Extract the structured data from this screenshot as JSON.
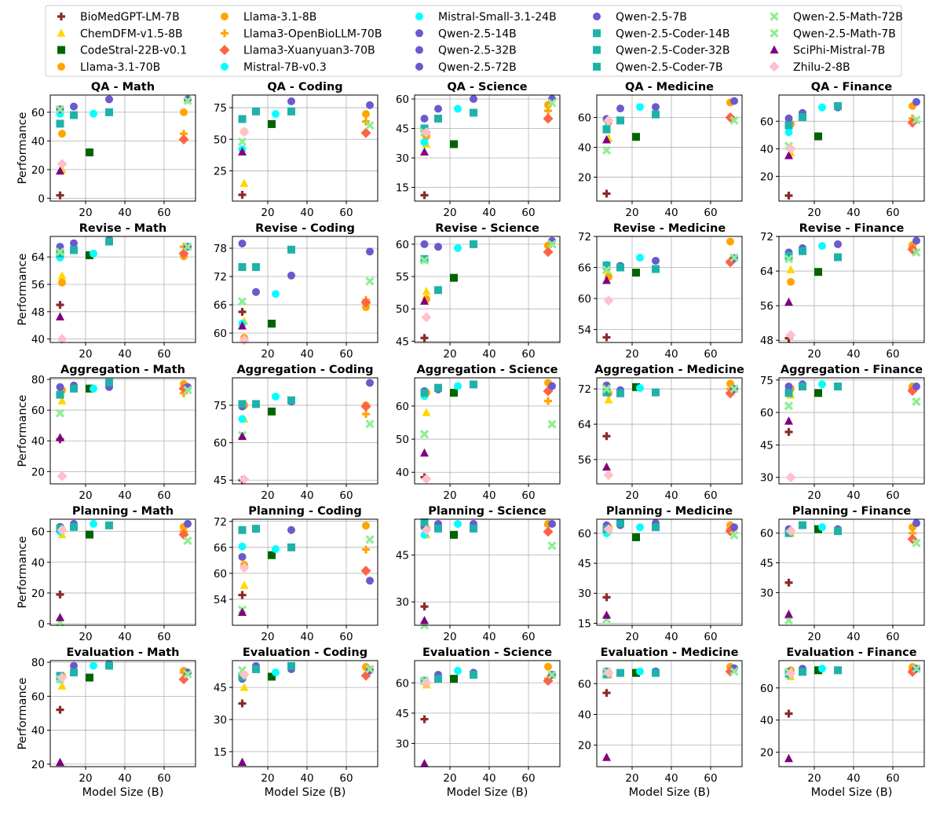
{
  "chart_data": {
    "type": "scatter",
    "xlabel": "Model Size (B)",
    "ylabel": "Performance",
    "x_ticks": [
      20,
      40,
      60
    ],
    "xlim": [
      2,
      76
    ],
    "legend": [
      {
        "name": "BioMedGPT-LM-7B",
        "marker": "plus",
        "color": "#8b2a2a"
      },
      {
        "name": "ChemDFM-v1.5-8B",
        "marker": "triangle",
        "color": "#ffd700"
      },
      {
        "name": "CodeStral-22B-v0.1",
        "marker": "square",
        "color": "#006400"
      },
      {
        "name": "Llama-3.1-70B",
        "marker": "circle",
        "color": "#ffa500"
      },
      {
        "name": "Llama-3.1-8B",
        "marker": "circle",
        "color": "#ffa500"
      },
      {
        "name": "Llama3-OpenBioLLM-70B",
        "marker": "plus",
        "color": "#ffa500"
      },
      {
        "name": "Llama3-Xuanyuan3-70B",
        "marker": "diamond",
        "color": "#ff6347"
      },
      {
        "name": "Mistral-7B-v0.3",
        "marker": "circle",
        "color": "#00ffff"
      },
      {
        "name": "Mistral-Small-3.1-24B",
        "marker": "circle",
        "color": "#00ffff"
      },
      {
        "name": "Qwen-2.5-14B",
        "marker": "circle",
        "color": "#6a5acd"
      },
      {
        "name": "Qwen-2.5-32B",
        "marker": "circle",
        "color": "#6a5acd"
      },
      {
        "name": "Qwen-2.5-72B",
        "marker": "circle",
        "color": "#6a5acd"
      },
      {
        "name": "Qwen-2.5-7B",
        "marker": "circle",
        "color": "#6a5acd"
      },
      {
        "name": "Qwen-2.5-Coder-14B",
        "marker": "square",
        "color": "#20b2aa"
      },
      {
        "name": "Qwen-2.5-Coder-32B",
        "marker": "square",
        "color": "#20b2aa"
      },
      {
        "name": "Qwen-2.5-Coder-7B",
        "marker": "square",
        "color": "#20b2aa"
      },
      {
        "name": "Qwen-2.5-Math-72B",
        "marker": "x",
        "color": "#90ee90"
      },
      {
        "name": "Qwen-2.5-Math-7B",
        "marker": "x",
        "color": "#90ee90"
      },
      {
        "name": "SciPhi-Mistral-7B",
        "marker": "triangle",
        "color": "#800080"
      },
      {
        "name": "Zhilu-2-8B",
        "marker": "diamond",
        "color": "#ffc0cb"
      }
    ],
    "model_sizes": {
      "BioMedGPT-LM-7B": 7,
      "ChemDFM-v1.5-8B": 8,
      "CodeStral-22B-v0.1": 22,
      "Llama-3.1-70B": 70,
      "Llama-3.1-8B": 8,
      "Llama3-OpenBioLLM-70B": 70,
      "Llama3-Xuanyuan3-70B": 70,
      "Mistral-7B-v0.3": 7,
      "Mistral-Small-3.1-24B": 24,
      "Qwen-2.5-14B": 14,
      "Qwen-2.5-32B": 32,
      "Qwen-2.5-72B": 72,
      "Qwen-2.5-7B": 7,
      "Qwen-2.5-Coder-14B": 14,
      "Qwen-2.5-Coder-32B": 32,
      "Qwen-2.5-Coder-7B": 7,
      "Qwen-2.5-Math-72B": 72,
      "Qwen-2.5-Math-7B": 7,
      "SciPhi-Mistral-7B": 7,
      "Zhilu-2-8B": 8
    },
    "series_order": [
      "BioMedGPT-LM-7B",
      "ChemDFM-v1.5-8B",
      "CodeStral-22B-v0.1",
      "Llama-3.1-70B",
      "Llama-3.1-8B",
      "Llama3-OpenBioLLM-70B",
      "Llama3-Xuanyuan3-70B",
      "Mistral-7B-v0.3",
      "Mistral-Small-3.1-24B",
      "Qwen-2.5-14B",
      "Qwen-2.5-32B",
      "Qwen-2.5-72B",
      "Qwen-2.5-7B",
      "Qwen-2.5-Coder-14B",
      "Qwen-2.5-Coder-32B",
      "Qwen-2.5-Coder-7B",
      "Qwen-2.5-Math-72B",
      "Qwen-2.5-Math-7B",
      "SciPhi-Mistral-7B",
      "Zhilu-2-8B"
    ],
    "panels": [
      {
        "title": "QA - Math",
        "ylim": [
          -2,
          72
        ],
        "y_ticks": [
          0,
          20,
          40,
          60
        ],
        "values": [
          2,
          20,
          32,
          60,
          45,
          45,
          41,
          59,
          59,
          64,
          69,
          69,
          62,
          58,
          60,
          52,
          68,
          62,
          19,
          24
        ]
      },
      {
        "title": "QA - Coding",
        "ylim": [
          1,
          85
        ],
        "y_ticks": [
          25,
          50,
          75
        ],
        "values": [
          6,
          15,
          62,
          70,
          56,
          64,
          55,
          42,
          70,
          72,
          80,
          77,
          66,
          72,
          72,
          66,
          61,
          48,
          40,
          56
        ]
      },
      {
        "title": "QA - Science",
        "ylim": [
          8,
          62
        ],
        "y_ticks": [
          15,
          30,
          45,
          60
        ],
        "values": [
          11,
          37,
          37,
          57,
          41,
          54,
          50,
          38,
          55,
          55,
          60,
          60,
          50,
          50,
          53,
          45,
          58,
          43,
          33,
          43
        ]
      },
      {
        "title": "QA - Medicine",
        "ylim": [
          4,
          75
        ],
        "y_ticks": [
          20,
          40,
          60
        ],
        "values": [
          9,
          46,
          47,
          70,
          57,
          60,
          60,
          53,
          67,
          66,
          67,
          71,
          59,
          58,
          62,
          52,
          58,
          38,
          45,
          58
        ]
      },
      {
        "title": "QA - Finance",
        "ylim": [
          2,
          79
        ],
        "y_ticks": [
          20,
          40,
          60
        ],
        "values": [
          6,
          37,
          49,
          71,
          58,
          62,
          59,
          52,
          70,
          66,
          70,
          74,
          62,
          63,
          71,
          57,
          61,
          42,
          35,
          40
        ]
      },
      {
        "title": "Revise - Math",
        "ylim": [
          39,
          70
        ],
        "y_ticks": [
          40,
          48,
          56,
          64
        ],
        "values": [
          50,
          58.5,
          64.5,
          64.2,
          56.5,
          67.0,
          65.0,
          63.8,
          65.0,
          68.0,
          69.0,
          67.0,
          67.0,
          66.0,
          68.5,
          65.0,
          67.0,
          65.5,
          46.5,
          40.0
        ]
      },
      {
        "title": "Revise - Coding",
        "ylim": [
          58,
          80.5
        ],
        "y_ticks": [
          60,
          66,
          72,
          78
        ],
        "values": [
          64.5,
          62.5,
          62.0,
          65.5,
          59.0,
          67.0,
          66.5,
          62.0,
          68.3,
          68.7,
          72.2,
          77.3,
          79.0,
          74.0,
          77.7,
          74.0,
          71.0,
          66.7,
          61.5,
          58.5
        ]
      },
      {
        "title": "Revise - Science",
        "ylim": [
          44.8,
          61.2
        ],
        "y_ticks": [
          45,
          50,
          55,
          60
        ],
        "values": [
          45.5,
          52.7,
          54.8,
          59.8,
          51.5,
          59.7,
          58.8,
          57.7,
          59.4,
          59.6,
          60.0,
          60.5,
          60.0,
          52.9,
          60.0,
          57.7,
          60.0,
          57.5,
          51.2,
          48.7
        ]
      },
      {
        "title": "Revise - Medicine",
        "ylim": [
          51.5,
          72
        ],
        "y_ticks": [
          54,
          60,
          66,
          72
        ],
        "values": [
          52.5,
          65.0,
          65.0,
          71.0,
          64.2,
          67.3,
          67.0,
          66.5,
          67.9,
          66.3,
          67.3,
          67.8,
          66.0,
          66.0,
          65.7,
          66.4,
          67.9,
          65.5,
          63.5,
          59.6
        ]
      },
      {
        "title": "Revise - Finance",
        "ylim": [
          47.5,
          72
        ],
        "y_ticks": [
          48,
          56,
          64,
          72
        ],
        "values": [
          48.5,
          64.3,
          63.8,
          70.0,
          61.5,
          69.5,
          69.0,
          67.7,
          69.8,
          69.3,
          70.2,
          71.0,
          68.3,
          68.6,
          67.2,
          67.5,
          68.3,
          66.8,
          56.8,
          49.2
        ]
      },
      {
        "title": "Aggregation - Math",
        "ylim": [
          12,
          81
        ],
        "y_ticks": [
          20,
          40,
          60,
          80
        ],
        "values": [
          41,
          66,
          74,
          77,
          73,
          71,
          74,
          70,
          74,
          76,
          75,
          75,
          75,
          74,
          78,
          70,
          73,
          58,
          42,
          17
        ]
      },
      {
        "title": "Aggregation - Coding",
        "ylim": [
          43.5,
          86
        ],
        "y_ticks": [
          45,
          60,
          75
        ],
        "values": [
          45.0,
          69.5,
          72.5,
          75.0,
          75.0,
          71.5,
          74.5,
          69.5,
          78.5,
          75.5,
          76.5,
          84.0,
          74.5,
          75.5,
          77.0,
          75.5,
          67.5,
          63.0,
          62.5,
          45.3
        ]
      },
      {
        "title": "Aggregation - Science",
        "ylim": [
          36.5,
          68.5
        ],
        "y_ticks": [
          40,
          50,
          60
        ],
        "values": [
          38.5,
          58.0,
          64.0,
          67.0,
          64.0,
          61.5,
          64.5,
          63.0,
          66.0,
          65.0,
          66.5,
          66.0,
          64.5,
          65.5,
          66.5,
          64.0,
          54.5,
          51.5,
          45.8,
          38.0
        ]
      },
      {
        "title": "Aggregation - Medicine",
        "ylim": [
          50.5,
          74.5
        ],
        "y_ticks": [
          56,
          64,
          72
        ],
        "values": [
          61.3,
          69.5,
          72.4,
          73.2,
          71.0,
          72.0,
          71.0,
          71.2,
          72.2,
          71.7,
          71.2,
          72.0,
          72.8,
          71.0,
          71.2,
          71.2,
          72.0,
          72.0,
          54.3,
          52.5
        ]
      },
      {
        "title": "Aggregation - Finance",
        "ylim": [
          27,
          76
        ],
        "y_ticks": [
          30,
          45,
          60,
          75
        ],
        "values": [
          51,
          68,
          69,
          72,
          71,
          71,
          70,
          70,
          73,
          73,
          72,
          72,
          72,
          72,
          72,
          69,
          65,
          63,
          56,
          30
        ]
      },
      {
        "title": "Planning - Math",
        "ylim": [
          -1,
          68
        ],
        "y_ticks": [
          0,
          20,
          40,
          60
        ],
        "values": [
          19,
          58,
          58,
          63,
          61,
          60,
          58,
          60,
          65,
          65,
          64,
          65,
          63,
          63,
          64,
          62,
          54,
          1,
          4,
          61
        ]
      },
      {
        "title": "Planning - Coding",
        "ylim": [
          48,
          72.5
        ],
        "y_ticks": [
          54,
          60,
          66,
          72
        ],
        "values": [
          55.0,
          57.2,
          64.2,
          71.0,
          62.0,
          65.5,
          60.6,
          66.2,
          65.6,
          70.3,
          70.0,
          58.3,
          63.8,
          70.3,
          66.0,
          70.0,
          67.8,
          51.6,
          51.0,
          61.3
        ]
      },
      {
        "title": "Planning - Science",
        "ylim": [
          22.5,
          56.5
        ],
        "y_ticks": [
          30,
          45
        ],
        "values": [
          28.5,
          51.5,
          51.5,
          55.0,
          53.5,
          54.5,
          52.5,
          51.5,
          55.0,
          55.0,
          55.0,
          55.0,
          54.0,
          53.5,
          53.5,
          55.5,
          48.0,
          22.5,
          24.0,
          53.0
        ]
      },
      {
        "title": "Planning - Medicine",
        "ylim": [
          14,
          67
        ],
        "y_ticks": [
          15,
          30,
          45,
          60
        ],
        "values": [
          28,
          62,
          58,
          64,
          63,
          62,
          61,
          60,
          63,
          64,
          65,
          63,
          64,
          65,
          63,
          62,
          59,
          17,
          19,
          62
        ]
      },
      {
        "title": "Planning - Finance",
        "ylim": [
          13.5,
          67
        ],
        "y_ticks": [
          30,
          45,
          60
        ],
        "values": [
          35,
          60,
          62,
          63,
          61,
          60,
          57,
          61,
          63,
          64,
          62,
          65,
          62,
          64,
          61,
          60,
          55,
          16,
          19,
          61
        ]
      },
      {
        "title": "Evaluation - Math",
        "ylim": [
          18.5,
          81
        ],
        "y_ticks": [
          20,
          40,
          60,
          80
        ],
        "values": [
          52,
          66,
          71,
          75,
          72,
          74,
          70,
          70,
          78,
          78,
          79,
          74,
          72,
          74,
          78,
          72,
          73,
          70,
          21,
          71
        ]
      },
      {
        "title": "Evaluation - Coding",
        "ylim": [
          8,
          57.5
        ],
        "y_ticks": [
          15,
          30,
          45
        ],
        "values": [
          37.5,
          45.0,
          50.0,
          54.5,
          51.0,
          54.5,
          50.5,
          49.5,
          52.0,
          55.0,
          53.5,
          53.0,
          49.0,
          53.5,
          55.0,
          50.0,
          53.5,
          53.0,
          10.0,
          51.0
        ]
      },
      {
        "title": "Evaluation - Science",
        "ylim": [
          18.5,
          71
        ],
        "y_ticks": [
          30,
          45,
          60
        ],
        "values": [
          42,
          59,
          62,
          68,
          60,
          62,
          61,
          61,
          66,
          64,
          65,
          64,
          61,
          62,
          64,
          61,
          64,
          61,
          20,
          60
        ]
      },
      {
        "title": "Evaluation - Medicine",
        "ylim": [
          6,
          75
        ],
        "y_ticks": [
          20,
          40,
          60
        ],
        "values": [
          54,
          66,
          67,
          71,
          67,
          68,
          68,
          67,
          68,
          67,
          68,
          70,
          68,
          67,
          67,
          66,
          68,
          68,
          12,
          67
        ]
      },
      {
        "title": "Evaluation - Finance",
        "ylim": [
          11,
          77
        ],
        "y_ticks": [
          20,
          40,
          60
        ],
        "values": [
          44,
          67,
          71,
          73,
          71,
          71,
          70,
          68,
          72,
          72,
          71,
          72,
          70,
          70,
          71,
          69,
          72,
          70,
          16,
          69
        ]
      }
    ]
  }
}
